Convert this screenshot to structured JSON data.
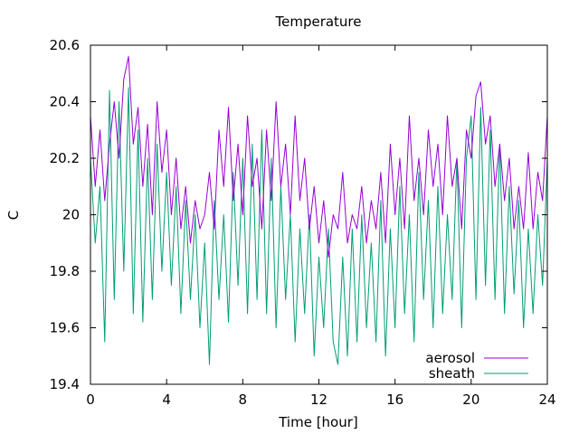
{
  "chart_data": {
    "type": "line",
    "title": "Temperature",
    "xlabel": "Time [hour]",
    "ylabel": "C",
    "xlim": [
      0,
      24
    ],
    "ylim": [
      19.4,
      20.6
    ],
    "xticks": [
      0,
      4,
      8,
      12,
      16,
      20,
      24
    ],
    "yticks": [
      19.4,
      19.6,
      19.8,
      20.0,
      20.2,
      20.4,
      20.6
    ],
    "xtick_labels": [
      "0",
      "4",
      "8",
      "12",
      "16",
      "20",
      "24"
    ],
    "ytick_labels": [
      "19.4",
      "19.6",
      "19.8",
      "20",
      "20.2",
      "20.4",
      "20.6"
    ],
    "grid": false,
    "legend_position": "bottom-right",
    "series": [
      {
        "name": "aerosol",
        "color": "#9400d3",
        "x": [
          0,
          0.25,
          0.5,
          0.75,
          1,
          1.25,
          1.5,
          1.75,
          2,
          2.25,
          2.5,
          2.75,
          3,
          3.25,
          3.5,
          3.75,
          4,
          4.25,
          4.5,
          4.75,
          5,
          5.25,
          5.5,
          5.75,
          6,
          6.25,
          6.5,
          6.75,
          7,
          7.25,
          7.5,
          7.75,
          8,
          8.25,
          8.5,
          8.75,
          9,
          9.25,
          9.5,
          9.75,
          10,
          10.25,
          10.5,
          10.75,
          11,
          11.25,
          11.5,
          11.75,
          12,
          12.25,
          12.5,
          12.75,
          13,
          13.25,
          13.5,
          13.75,
          14,
          14.25,
          14.5,
          14.75,
          15,
          15.25,
          15.5,
          15.75,
          16,
          16.25,
          16.5,
          16.75,
          17,
          17.25,
          17.5,
          17.75,
          18,
          18.25,
          18.5,
          18.75,
          19,
          19.25,
          19.5,
          19.75,
          20,
          20.25,
          20.5,
          20.75,
          21,
          21.25,
          21.5,
          21.75,
          22,
          22.25,
          22.5,
          22.75,
          23,
          23.25,
          23.5,
          23.75,
          24
        ],
        "y": [
          20.35,
          20.1,
          20.3,
          20.05,
          20.25,
          20.4,
          20.2,
          20.48,
          20.56,
          20.25,
          20.38,
          20.1,
          20.32,
          20.0,
          20.4,
          20.15,
          20.3,
          20.0,
          20.2,
          19.95,
          20.1,
          19.9,
          20.05,
          19.95,
          20.0,
          20.15,
          19.95,
          20.3,
          20.1,
          20.38,
          20.05,
          20.25,
          20.0,
          20.35,
          20.1,
          20.2,
          19.95,
          20.3,
          20.05,
          20.4,
          20.1,
          20.25,
          20.0,
          20.35,
          20.05,
          20.2,
          19.95,
          20.1,
          19.9,
          20.05,
          19.85,
          20.0,
          19.95,
          20.15,
          19.9,
          20.0,
          19.95,
          20.1,
          19.9,
          20.05,
          19.95,
          20.15,
          19.9,
          20.25,
          20.0,
          20.2,
          19.95,
          20.35,
          20.05,
          20.2,
          20.0,
          20.3,
          20.1,
          20.25,
          20.0,
          20.35,
          20.1,
          20.2,
          19.95,
          20.3,
          20.2,
          20.42,
          20.47,
          20.25,
          20.35,
          20.1,
          20.25,
          20.05,
          20.2,
          19.95,
          20.1,
          19.95,
          20.22,
          19.95,
          20.15,
          20.05,
          20.35
        ]
      },
      {
        "name": "sheath",
        "color": "#009e73",
        "x": [
          0,
          0.25,
          0.5,
          0.75,
          1,
          1.25,
          1.5,
          1.75,
          2,
          2.25,
          2.5,
          2.75,
          3,
          3.25,
          3.5,
          3.75,
          4,
          4.25,
          4.5,
          4.75,
          5,
          5.25,
          5.5,
          5.75,
          6,
          6.25,
          6.5,
          6.75,
          7,
          7.25,
          7.5,
          7.75,
          8,
          8.25,
          8.5,
          8.75,
          9,
          9.25,
          9.5,
          9.75,
          10,
          10.25,
          10.5,
          10.75,
          11,
          11.25,
          11.5,
          11.75,
          12,
          12.25,
          12.5,
          12.75,
          13,
          13.25,
          13.5,
          13.75,
          14,
          14.25,
          14.5,
          14.75,
          15,
          15.25,
          15.5,
          15.75,
          16,
          16.25,
          16.5,
          16.75,
          17,
          17.25,
          17.5,
          17.75,
          18,
          18.25,
          18.5,
          18.75,
          19,
          19.25,
          19.5,
          19.75,
          20,
          20.25,
          20.5,
          20.75,
          21,
          21.25,
          21.5,
          21.75,
          22,
          22.25,
          22.5,
          22.75,
          23,
          23.25,
          23.5,
          23.75,
          24
        ],
        "y": [
          20.2,
          19.9,
          20.1,
          19.55,
          20.44,
          19.7,
          20.4,
          19.8,
          20.45,
          19.65,
          20.3,
          19.62,
          20.2,
          19.7,
          20.25,
          19.8,
          20.15,
          19.75,
          20.1,
          19.65,
          20.05,
          19.7,
          20.0,
          19.6,
          19.9,
          19.47,
          20.05,
          19.7,
          20.0,
          19.62,
          20.15,
          19.75,
          20.2,
          19.65,
          20.25,
          19.7,
          20.3,
          19.65,
          20.2,
          19.6,
          20.1,
          19.7,
          20.0,
          19.55,
          19.95,
          19.65,
          20.0,
          19.5,
          19.85,
          19.6,
          19.95,
          19.55,
          19.47,
          19.85,
          19.5,
          19.95,
          19.55,
          20.0,
          19.6,
          19.9,
          19.55,
          20.05,
          19.5,
          19.95,
          19.6,
          20.1,
          19.65,
          20.0,
          19.55,
          20.15,
          19.7,
          20.05,
          19.6,
          20.1,
          19.65,
          20.0,
          19.7,
          20.2,
          19.6,
          20.2,
          20.35,
          19.7,
          20.38,
          19.75,
          20.3,
          19.7,
          20.25,
          19.65,
          20.1,
          19.72,
          20.05,
          19.6,
          19.95,
          19.65,
          20.0,
          19.75,
          20.2
        ]
      }
    ]
  }
}
